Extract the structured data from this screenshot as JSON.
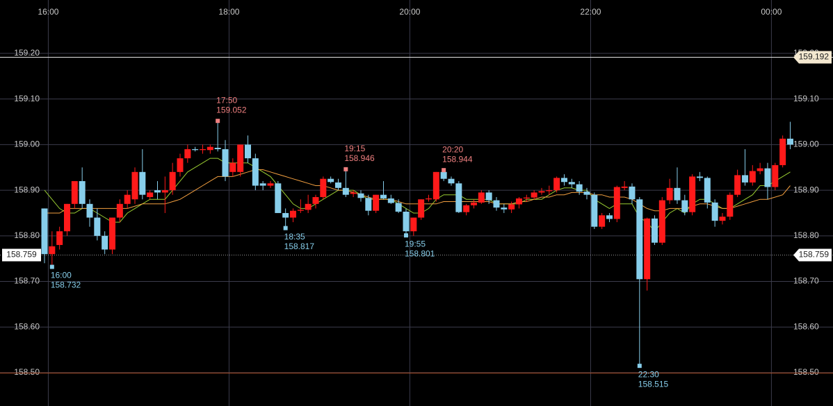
{
  "chart_data": {
    "type": "candlestick",
    "categories": [
      null,
      "16:00",
      null,
      null,
      null,
      null,
      null,
      null,
      null,
      null,
      null,
      null,
      null,
      null,
      null,
      null,
      null,
      null,
      null,
      null,
      null,
      null,
      null,
      null,
      null,
      "18:00",
      null,
      null,
      null,
      null,
      null,
      null,
      null,
      null,
      null,
      null,
      null,
      null,
      null,
      null,
      null,
      null,
      null,
      null,
      null,
      null,
      null,
      null,
      null,
      "20:00",
      null,
      null,
      null,
      null,
      null,
      null,
      null,
      null,
      null,
      null,
      null,
      null,
      null,
      null,
      null,
      null,
      null,
      null,
      null,
      null,
      null,
      null,
      null,
      "22:00",
      null,
      null,
      null,
      null,
      null,
      null,
      null,
      null,
      null,
      null,
      null,
      null,
      null,
      null,
      null,
      null,
      null,
      null,
      null,
      null,
      null,
      null,
      null,
      "00:00",
      null,
      null
    ],
    "open": [
      158.86,
      158.76,
      158.78,
      158.81,
      158.87,
      158.92,
      158.87,
      158.84,
      158.8,
      158.77,
      158.84,
      158.87,
      158.88,
      158.94,
      158.885,
      158.9,
      158.895,
      158.9,
      158.94,
      158.97,
      158.99,
      158.988,
      158.988,
      158.993,
      158.99,
      158.94,
      158.94,
      159.0,
      158.97,
      158.915,
      158.91,
      158.915,
      158.85,
      158.84,
      158.855,
      158.857,
      158.87,
      158.885,
      158.925,
      158.917,
      158.905,
      158.892,
      158.893,
      158.883,
      158.855,
      158.89,
      158.882,
      158.872,
      158.853,
      158.81,
      158.84,
      158.88,
      158.88,
      158.94,
      158.925,
      158.915,
      158.852,
      158.867,
      158.873,
      158.895,
      158.878,
      158.862,
      158.858,
      158.869,
      158.882,
      158.884,
      158.895,
      158.898,
      158.9,
      158.927,
      158.918,
      158.913,
      158.897,
      158.89,
      158.82,
      158.845,
      158.837,
      158.905,
      158.908,
      158.88,
      158.705,
      158.838,
      158.785,
      158.878,
      158.905,
      158.878,
      158.852,
      158.93,
      158.927,
      158.873,
      158.833,
      158.842,
      158.89,
      158.933,
      158.917,
      158.942,
      158.948,
      158.907,
      158.955,
      159.013
    ],
    "high": [
      158.86,
      158.81,
      158.82,
      158.87,
      158.92,
      158.95,
      158.88,
      158.86,
      158.81,
      158.84,
      158.88,
      158.9,
      158.95,
      158.99,
      158.9,
      158.92,
      158.93,
      158.96,
      158.98,
      159.0,
      158.995,
      159.0,
      159.0,
      159.052,
      159.01,
      158.97,
      159.0,
      159.02,
      158.98,
      158.92,
      158.92,
      158.92,
      158.86,
      158.86,
      158.88,
      158.89,
      158.89,
      158.93,
      158.93,
      158.925,
      158.946,
      158.9,
      158.9,
      158.89,
      158.89,
      158.92,
      158.89,
      158.88,
      158.86,
      158.84,
      158.88,
      158.89,
      158.94,
      158.944,
      158.93,
      158.92,
      158.87,
      158.88,
      158.9,
      158.9,
      158.885,
      158.87,
      158.875,
      158.885,
      158.89,
      158.9,
      158.905,
      158.91,
      158.93,
      158.935,
      158.925,
      158.92,
      158.905,
      158.895,
      158.85,
      158.85,
      158.91,
      158.92,
      158.915,
      158.885,
      158.84,
      158.845,
      158.885,
      158.925,
      158.95,
      158.89,
      158.935,
      158.94,
      158.93,
      158.88,
      158.85,
      158.895,
      158.945,
      158.99,
      158.955,
      158.96,
      158.96,
      158.96,
      159.02,
      159.05
    ],
    "low": [
      158.74,
      158.732,
      158.77,
      158.8,
      158.86,
      158.86,
      158.82,
      158.79,
      158.76,
      158.76,
      158.83,
      158.86,
      158.87,
      158.88,
      158.88,
      158.88,
      158.85,
      158.89,
      158.93,
      158.96,
      158.985,
      158.98,
      158.98,
      158.985,
      158.92,
      158.93,
      158.93,
      158.96,
      158.9,
      158.9,
      158.905,
      158.85,
      158.817,
      158.83,
      158.85,
      158.85,
      158.86,
      158.88,
      158.915,
      158.9,
      158.885,
      158.885,
      158.875,
      158.845,
      158.85,
      158.88,
      158.87,
      158.85,
      158.801,
      158.8,
      158.835,
      158.875,
      158.875,
      158.92,
      158.91,
      158.85,
      158.845,
      158.86,
      158.87,
      158.87,
      158.855,
      158.85,
      158.85,
      158.86,
      158.875,
      158.88,
      158.89,
      158.89,
      158.895,
      158.91,
      158.905,
      158.89,
      158.88,
      158.815,
      158.815,
      158.83,
      158.83,
      158.9,
      158.87,
      158.515,
      158.68,
      158.78,
      158.78,
      158.87,
      158.87,
      158.845,
      158.845,
      158.92,
      158.86,
      158.82,
      158.825,
      158.835,
      158.885,
      158.91,
      158.91,
      158.935,
      158.88,
      158.9,
      158.95,
      158.99
    ],
    "close": [
      158.76,
      158.777,
      158.81,
      158.87,
      158.92,
      158.87,
      158.84,
      158.8,
      158.77,
      158.84,
      158.87,
      158.89,
      158.94,
      158.89,
      158.895,
      158.895,
      158.9,
      158.94,
      158.97,
      158.99,
      158.988,
      158.99,
      158.995,
      158.99,
      158.93,
      158.96,
      159.0,
      158.97,
      158.91,
      158.91,
      158.915,
      158.85,
      158.84,
      158.855,
      158.857,
      158.87,
      158.885,
      158.925,
      158.918,
      158.905,
      158.89,
      158.895,
      158.883,
      158.855,
      158.89,
      158.882,
      158.872,
      158.853,
      158.81,
      158.84,
      158.88,
      158.882,
      158.94,
      158.925,
      158.915,
      158.852,
      158.867,
      158.873,
      158.895,
      158.878,
      158.862,
      158.858,
      158.869,
      158.882,
      158.884,
      158.895,
      158.898,
      158.9,
      158.927,
      158.918,
      158.913,
      158.897,
      158.89,
      158.82,
      158.845,
      158.837,
      158.907,
      158.908,
      158.88,
      158.705,
      158.838,
      158.785,
      158.878,
      158.905,
      158.878,
      158.852,
      158.93,
      158.927,
      158.873,
      158.833,
      158.842,
      158.89,
      158.933,
      158.917,
      158.942,
      158.948,
      158.907,
      158.955,
      159.013,
      159.0
    ],
    "up_color": "#ff1a1a",
    "down_color": "#87ceeb",
    "moving_averages": [
      {
        "color": "#9acd32",
        "values": [
          158.9,
          158.88,
          158.86,
          158.85,
          158.85,
          158.86,
          158.86,
          158.85,
          158.84,
          158.83,
          158.83,
          158.85,
          158.86,
          158.87,
          158.88,
          158.88,
          158.88,
          158.9,
          158.92,
          158.94,
          158.95,
          158.96,
          158.97,
          158.97,
          158.96,
          158.96,
          158.96,
          158.96,
          158.95,
          158.94,
          158.93,
          158.91,
          158.89,
          158.87,
          158.86,
          158.86,
          158.87,
          158.88,
          158.89,
          158.9,
          158.9,
          158.9,
          158.89,
          158.88,
          158.88,
          158.88,
          158.88,
          158.87,
          158.86,
          158.85,
          158.85,
          158.86,
          158.88,
          158.89,
          158.89,
          158.89,
          158.88,
          158.88,
          158.88,
          158.88,
          158.87,
          158.87,
          158.87,
          158.87,
          158.88,
          158.88,
          158.88,
          158.89,
          158.9,
          158.905,
          158.905,
          158.9,
          158.9,
          158.88,
          158.87,
          158.86,
          158.87,
          158.87,
          158.87,
          158.84,
          158.83,
          158.81,
          158.83,
          158.85,
          158.86,
          158.85,
          158.87,
          158.88,
          158.88,
          158.87,
          158.86,
          158.86,
          158.87,
          158.88,
          158.89,
          158.91,
          158.91,
          158.92,
          158.93,
          158.94
        ]
      },
      {
        "color": "#f4a040",
        "values": [
          158.85,
          158.85,
          158.85,
          158.86,
          158.86,
          158.86,
          158.86,
          158.86,
          158.86,
          158.86,
          158.86,
          158.86,
          158.865,
          158.87,
          158.87,
          158.87,
          158.87,
          158.875,
          158.88,
          158.89,
          158.9,
          158.91,
          158.92,
          158.93,
          158.93,
          158.93,
          158.935,
          158.94,
          158.945,
          158.945,
          158.94,
          158.935,
          158.93,
          158.925,
          158.92,
          158.915,
          158.91,
          158.91,
          158.905,
          158.9,
          158.9,
          158.895,
          158.89,
          158.885,
          158.88,
          158.88,
          158.88,
          158.875,
          158.87,
          158.87,
          158.87,
          158.87,
          158.87,
          158.875,
          158.875,
          158.875,
          158.875,
          158.875,
          158.875,
          158.875,
          158.87,
          158.87,
          158.87,
          158.875,
          158.875,
          158.88,
          158.885,
          158.885,
          158.89,
          158.89,
          158.895,
          158.895,
          158.895,
          158.89,
          158.89,
          158.885,
          158.885,
          158.885,
          158.88,
          158.87,
          158.86,
          158.855,
          158.855,
          158.86,
          158.86,
          158.86,
          158.865,
          158.87,
          158.87,
          158.865,
          158.86,
          158.86,
          158.865,
          158.87,
          158.875,
          158.88,
          158.88,
          158.885,
          158.89,
          158.91
        ]
      }
    ],
    "annotations": [
      {
        "time": "17:50",
        "price": 159.052,
        "kind": "high",
        "color": "#f08080"
      },
      {
        "time": "19:15",
        "price": 158.946,
        "kind": "high",
        "color": "#f08080"
      },
      {
        "time": "20:20",
        "price": 158.944,
        "kind": "high",
        "color": "#f08080"
      },
      {
        "time": "16:00",
        "price": 158.732,
        "kind": "low",
        "color": "#87ceeb"
      },
      {
        "time": "18:35",
        "price": 158.817,
        "kind": "low",
        "color": "#87ceeb"
      },
      {
        "time": "19:55",
        "price": 158.801,
        "kind": "low",
        "color": "#87ceeb"
      },
      {
        "time": "22:30",
        "price": 158.515,
        "kind": "low",
        "color": "#87ceeb"
      }
    ],
    "price_lines": [
      {
        "value": 159.192,
        "label": "159.192",
        "color": "#e6e6e6",
        "tag_sides": [
          "right"
        ],
        "tag_color": "#f3e8d0",
        "dashed": false
      },
      {
        "value": 158.759,
        "label": "158.759",
        "color": "#999999",
        "tag_sides": [
          "left",
          "right"
        ],
        "tag_color": "#ffffff",
        "dashed": true
      },
      {
        "value": 158.5,
        "color": "#b0522d",
        "dashed": false
      }
    ],
    "ylim": [
      158.427,
      159.317
    ],
    "yticks": [
      {
        "value": 158.5,
        "label": "158.50"
      },
      {
        "value": 158.6,
        "label": "158.60"
      },
      {
        "value": 158.7,
        "label": "158.70"
      },
      {
        "value": 158.8,
        "label": "158.80"
      },
      {
        "value": 158.9,
        "label": "158.90"
      },
      {
        "value": 159.0,
        "label": "159.00"
      },
      {
        "value": 159.1,
        "label": "159.10"
      },
      {
        "value": 159.2,
        "label": "159.20"
      }
    ],
    "grid": true
  }
}
